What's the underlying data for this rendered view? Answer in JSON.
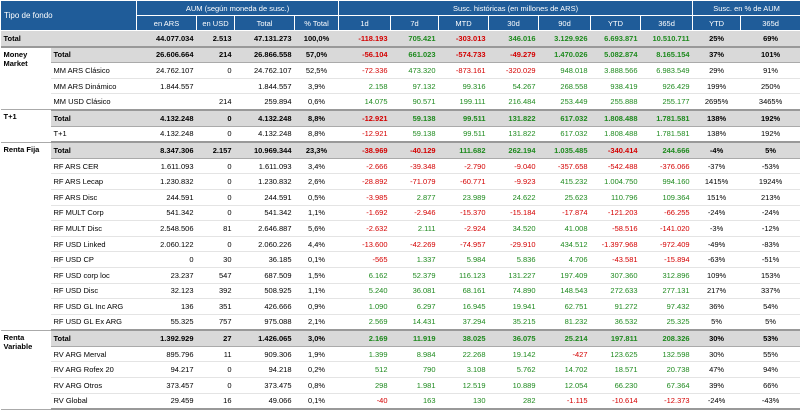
{
  "header": {
    "title": "Tipo de fondo",
    "groups": [
      "AUM (según moneda de susc.)",
      "Susc. históricas (en millones de ARS)",
      "Susc. en % de AUM"
    ],
    "columns": [
      "en ARS",
      "en USD",
      "Total",
      "% Total",
      "1d",
      "7d",
      "MTD",
      "30d",
      "90d",
      "YTD",
      "365d",
      "YTD",
      "365d"
    ]
  },
  "total": {
    "name": "Total",
    "cells": [
      "44.077.034",
      "2.513",
      "47.131.273",
      "100,0%",
      "-118.193",
      "705.421",
      "-303.013",
      "346.016",
      "3.129.926",
      "6.693.871",
      "10.510.711",
      "25%",
      "69%"
    ]
  },
  "groups": [
    {
      "label": "Money Market",
      "rows": [
        {
          "name": "Total",
          "cells": [
            "26.606.664",
            "214",
            "26.866.558",
            "57,0%",
            "-56.104",
            "661.023",
            "-574.733",
            "-49.279",
            "1.470.026",
            "5.082.874",
            "8.165.154",
            "37%",
            "101%"
          ]
        },
        {
          "name": "MM ARS Clásico",
          "cells": [
            "24.762.107",
            "0",
            "24.762.107",
            "52,5%",
            "-72.336",
            "473.320",
            "-873.161",
            "-320.029",
            "948.018",
            "3.888.566",
            "6.983.549",
            "29%",
            "91%"
          ]
        },
        {
          "name": "MM ARS Dinámico",
          "cells": [
            "1.844.557",
            null,
            "1.844.557",
            "3,9%",
            "2.158",
            "97.132",
            "99.316",
            "54.267",
            "268.558",
            "938.419",
            "926.429",
            "199%",
            "250%"
          ]
        },
        {
          "name": "MM USD Clásico",
          "cells": [
            null,
            "214",
            "259.894",
            "0,6%",
            "14.075",
            "90.571",
            "199.111",
            "216.484",
            "253.449",
            "255.888",
            "255.177",
            "2695%",
            "3465%"
          ]
        }
      ]
    },
    {
      "label": "T+1",
      "rows": [
        {
          "name": "Total",
          "cells": [
            "4.132.248",
            "0",
            "4.132.248",
            "8,8%",
            "-12.921",
            "59.138",
            "99.511",
            "131.822",
            "617.032",
            "1.808.488",
            "1.781.581",
            "138%",
            "192%"
          ]
        },
        {
          "name": "T+1",
          "cells": [
            "4.132.248",
            "0",
            "4.132.248",
            "8,8%",
            "-12.921",
            "59.138",
            "99.511",
            "131.822",
            "617.032",
            "1.808.488",
            "1.781.581",
            "138%",
            "192%"
          ]
        }
      ]
    },
    {
      "label": "Renta Fija",
      "rows": [
        {
          "name": "Total",
          "cells": [
            "8.347.306",
            "2.157",
            "10.969.344",
            "23,3%",
            "-38.969",
            "-40.129",
            "111.682",
            "262.194",
            "1.035.485",
            "-340.414",
            "244.666",
            "-4%",
            "5%"
          ]
        },
        {
          "name": "RF ARS CER",
          "cells": [
            "1.611.093",
            "0",
            "1.611.093",
            "3,4%",
            "-2.666",
            "-39.348",
            "-2.790",
            "-9.040",
            "-357.658",
            "-542.488",
            "-376.066",
            "-37%",
            "-53%"
          ]
        },
        {
          "name": "RF ARS Lecap",
          "cells": [
            "1.230.832",
            "0",
            "1.230.832",
            "2,6%",
            "-28.892",
            "-71.079",
            "-60.771",
            "-9.923",
            "415.232",
            "1.004.750",
            "994.160",
            "1415%",
            "1924%"
          ]
        },
        {
          "name": "RF ARS Disc",
          "cells": [
            "244.591",
            "0",
            "244.591",
            "0,5%",
            "-3.985",
            "2.877",
            "23.989",
            "24.622",
            "25.623",
            "110.796",
            "109.364",
            "151%",
            "213%"
          ]
        },
        {
          "name": "RF MULT Corp",
          "cells": [
            "541.342",
            "0",
            "541.342",
            "1,1%",
            "-1.692",
            "-2.946",
            "-15.370",
            "-15.184",
            "-17.874",
            "-121.203",
            "-66.255",
            "-24%",
            "-24%"
          ]
        },
        {
          "name": "RF MULT Disc",
          "cells": [
            "2.548.506",
            "81",
            "2.646.887",
            "5,6%",
            "-2.632",
            "2.111",
            "-2.924",
            "34.520",
            "41.008",
            "-58.516",
            "-141.020",
            "-3%",
            "-12%"
          ]
        },
        {
          "name": "RF USD Linked",
          "cells": [
            "2.060.122",
            "0",
            "2.060.226",
            "4,4%",
            "-13.600",
            "-42.269",
            "-74.957",
            "-29.910",
            "434.512",
            "-1.397.968",
            "-972.409",
            "-49%",
            "-83%"
          ]
        },
        {
          "name": "RF USD CP",
          "cells": [
            "0",
            "30",
            "36.185",
            "0,1%",
            "-565",
            "1.337",
            "5.984",
            "5.836",
            "4.706",
            "-43.581",
            "-15.894",
            "-63%",
            "-51%"
          ]
        },
        {
          "name": "RF USD corp loc",
          "cells": [
            "23.237",
            "547",
            "687.509",
            "1,5%",
            "6.162",
            "52.379",
            "116.123",
            "131.227",
            "197.409",
            "307.360",
            "312.896",
            "109%",
            "153%"
          ]
        },
        {
          "name": "RF USD Disc",
          "cells": [
            "32.123",
            "392",
            "508.925",
            "1,1%",
            "5.240",
            "36.081",
            "68.161",
            "74.890",
            "148.543",
            "272.633",
            "277.131",
            "217%",
            "337%"
          ]
        },
        {
          "name": "RF USD GL Inc ARG",
          "cells": [
            "136",
            "351",
            "426.666",
            "0,9%",
            "1.090",
            "6.297",
            "16.945",
            "19.941",
            "62.751",
            "91.272",
            "97.432",
            "36%",
            "54%"
          ]
        },
        {
          "name": "RF USD GL Ex ARG",
          "cells": [
            "55.325",
            "757",
            "975.088",
            "2,1%",
            "2.569",
            "14.431",
            "37.294",
            "35.215",
            "81.232",
            "36.532",
            "25.325",
            "5%",
            "5%"
          ]
        }
      ]
    },
    {
      "label": "Renta Variable",
      "rows": [
        {
          "name": "Total",
          "cells": [
            "1.392.929",
            "27",
            "1.426.065",
            "3,0%",
            "2.169",
            "11.919",
            "38.025",
            "36.075",
            "25.214",
            "197.811",
            "208.326",
            "30%",
            "53%"
          ]
        },
        {
          "name": "RV ARG Merval",
          "cells": [
            "895.796",
            "11",
            "909.306",
            "1,9%",
            "1.399",
            "8.984",
            "22.268",
            "19.142",
            "-427",
            "123.625",
            "132.598",
            "30%",
            "55%"
          ]
        },
        {
          "name": "RV ARG Rofex 20",
          "cells": [
            "94.217",
            "0",
            "94.218",
            "0,2%",
            "512",
            "790",
            "3.108",
            "5.762",
            "14.702",
            "18.571",
            "20.738",
            "47%",
            "94%"
          ]
        },
        {
          "name": "RV ARG Otros",
          "cells": [
            "373.457",
            "0",
            "373.475",
            "0,8%",
            "298",
            "1.981",
            "12.519",
            "10.889",
            "12.054",
            "66.230",
            "67.364",
            "39%",
            "66%"
          ]
        },
        {
          "name": "RV Global",
          "cells": [
            "29.459",
            "16",
            "49.066",
            "0,1%",
            "-40",
            "163",
            "130",
            "282",
            "-1.115",
            "-10.614",
            "-12.373",
            "-24%",
            "-43%"
          ]
        }
      ]
    }
  ]
}
